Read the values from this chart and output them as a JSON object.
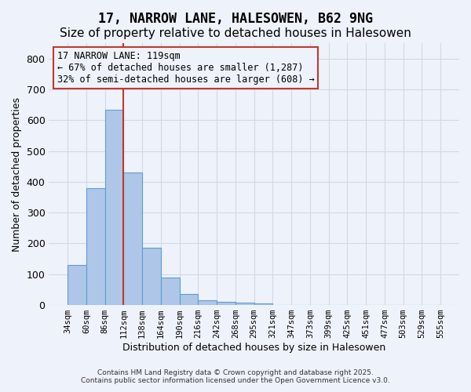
{
  "title1": "17, NARROW LANE, HALESOWEN, B62 9NG",
  "title2": "Size of property relative to detached houses in Halesowen",
  "xlabel": "Distribution of detached houses by size in Halesowen",
  "ylabel": "Number of detached properties",
  "bar_values": [
    130,
    380,
    635,
    430,
    185,
    90,
    35,
    15,
    10,
    8,
    6,
    0,
    0,
    0,
    0,
    0,
    0,
    0,
    0,
    0
  ],
  "bin_labels": [
    "34sqm",
    "60sqm",
    "86sqm",
    "112sqm",
    "138sqm",
    "164sqm",
    "190sqm",
    "216sqm",
    "242sqm",
    "268sqm",
    "295sqm",
    "321sqm",
    "347sqm",
    "373sqm",
    "399sqm",
    "425sqm",
    "451sqm",
    "477sqm",
    "503sqm",
    "529sqm",
    "555sqm"
  ],
  "bar_color": "#aec6e8",
  "bar_edge_color": "#5a9fd4",
  "vline_x": 3,
  "vline_color": "#c0392b",
  "annotation_text": "17 NARROW LANE: 119sqm\n← 67% of detached houses are smaller (1,287)\n32% of semi-detached houses are larger (608) →",
  "annotation_box_color": "#c0392b",
  "ylim": [
    0,
    850
  ],
  "yticks": [
    0,
    100,
    200,
    300,
    400,
    500,
    600,
    700,
    800
  ],
  "grid_color": "#d0d8e8",
  "bg_color": "#eef2fa",
  "title1_fontsize": 12,
  "title2_fontsize": 11,
  "footer1": "Contains HM Land Registry data © Crown copyright and database right 2025.",
  "footer2": "Contains public sector information licensed under the Open Government Licence v3.0."
}
